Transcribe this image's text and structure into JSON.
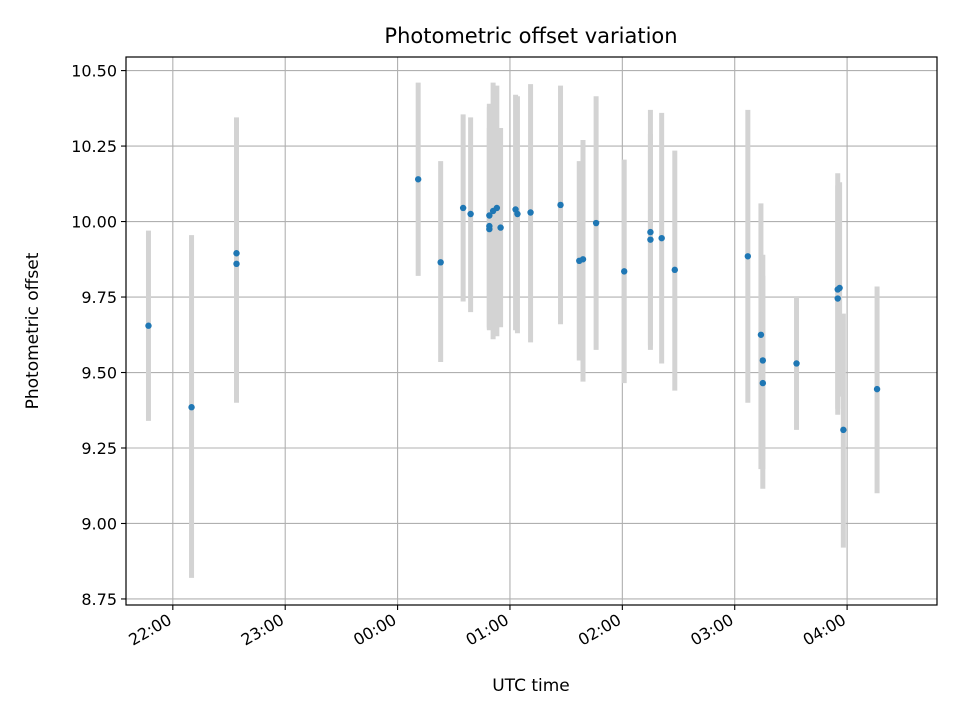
{
  "chart_data": {
    "type": "scatter",
    "title": "Photometric offset variation",
    "xlabel": "UTC time",
    "ylabel": "Photometric offset",
    "x_axis_type": "time",
    "xlim": [
      "21:35",
      "04:48"
    ],
    "ylim": [
      8.73,
      10.545
    ],
    "x_ticks": [
      "22:00",
      "23:00",
      "00:00",
      "01:00",
      "02:00",
      "03:00",
      "04:00"
    ],
    "y_ticks": [
      "8.75",
      "9.00",
      "9.25",
      "9.50",
      "9.75",
      "10.00",
      "10.25",
      "10.50"
    ],
    "grid": true,
    "point_color": "#1f77b4",
    "errorbar_color": "#d3d3d3",
    "points": [
      {
        "x": "21:47",
        "y": 9.655,
        "ylo": 9.34,
        "yhi": 9.97
      },
      {
        "x": "22:10",
        "y": 9.385,
        "ylo": 8.82,
        "yhi": 9.955
      },
      {
        "x": "22:34",
        "y": 9.895,
        "ylo": 9.46,
        "yhi": 10.345
      },
      {
        "x": "22:34",
        "y": 9.86,
        "ylo": 9.4,
        "yhi": 10.33
      },
      {
        "x": "00:11",
        "y": 10.14,
        "ylo": 9.82,
        "yhi": 10.46
      },
      {
        "x": "00:23",
        "y": 9.865,
        "ylo": 9.535,
        "yhi": 10.2
      },
      {
        "x": "00:35",
        "y": 10.045,
        "ylo": 9.735,
        "yhi": 10.355
      },
      {
        "x": "00:39",
        "y": 10.025,
        "ylo": 9.7,
        "yhi": 10.345
      },
      {
        "x": "00:49",
        "y": 9.985,
        "ylo": 9.645,
        "yhi": 10.31
      },
      {
        "x": "00:49",
        "y": 9.975,
        "ylo": 9.65,
        "yhi": 10.38
      },
      {
        "x": "00:49",
        "y": 10.02,
        "ylo": 9.64,
        "yhi": 10.39
      },
      {
        "x": "00:51",
        "y": 10.035,
        "ylo": 9.61,
        "yhi": 10.46
      },
      {
        "x": "00:53",
        "y": 10.045,
        "ylo": 9.62,
        "yhi": 10.45
      },
      {
        "x": "00:55",
        "y": 9.98,
        "ylo": 9.65,
        "yhi": 10.31
      },
      {
        "x": "01:03",
        "y": 10.04,
        "ylo": 9.64,
        "yhi": 10.42
      },
      {
        "x": "01:04",
        "y": 10.025,
        "ylo": 9.63,
        "yhi": 10.415
      },
      {
        "x": "01:11",
        "y": 10.03,
        "ylo": 9.6,
        "yhi": 10.455
      },
      {
        "x": "01:27",
        "y": 10.055,
        "ylo": 9.66,
        "yhi": 10.45
      },
      {
        "x": "01:37",
        "y": 9.87,
        "ylo": 9.54,
        "yhi": 10.2
      },
      {
        "x": "01:39",
        "y": 9.875,
        "ylo": 9.47,
        "yhi": 10.27
      },
      {
        "x": "01:46",
        "y": 9.995,
        "ylo": 9.575,
        "yhi": 10.415
      },
      {
        "x": "02:01",
        "y": 9.835,
        "ylo": 9.465,
        "yhi": 10.205
      },
      {
        "x": "02:15",
        "y": 9.965,
        "ylo": 9.575,
        "yhi": 10.37
      },
      {
        "x": "02:15",
        "y": 9.94,
        "ylo": 9.59,
        "yhi": 10.29
      },
      {
        "x": "02:21",
        "y": 9.945,
        "ylo": 9.53,
        "yhi": 10.36
      },
      {
        "x": "02:28",
        "y": 9.84,
        "ylo": 9.44,
        "yhi": 10.235
      },
      {
        "x": "03:07",
        "y": 9.885,
        "ylo": 9.4,
        "yhi": 10.37
      },
      {
        "x": "03:14",
        "y": 9.625,
        "ylo": 9.18,
        "yhi": 10.06
      },
      {
        "x": "03:15",
        "y": 9.54,
        "ylo": 9.18,
        "yhi": 9.89
      },
      {
        "x": "03:15",
        "y": 9.465,
        "ylo": 9.115,
        "yhi": 9.82
      },
      {
        "x": "03:33",
        "y": 9.53,
        "ylo": 9.31,
        "yhi": 9.75
      },
      {
        "x": "03:55",
        "y": 9.745,
        "ylo": 9.38,
        "yhi": 10.12
      },
      {
        "x": "03:55",
        "y": 9.775,
        "ylo": 9.36,
        "yhi": 10.16
      },
      {
        "x": "03:56",
        "y": 9.78,
        "ylo": 9.42,
        "yhi": 10.13
      },
      {
        "x": "03:58",
        "y": 9.31,
        "ylo": 8.92,
        "yhi": 9.695
      },
      {
        "x": "04:16",
        "y": 9.445,
        "ylo": 9.1,
        "yhi": 9.785
      }
    ]
  }
}
